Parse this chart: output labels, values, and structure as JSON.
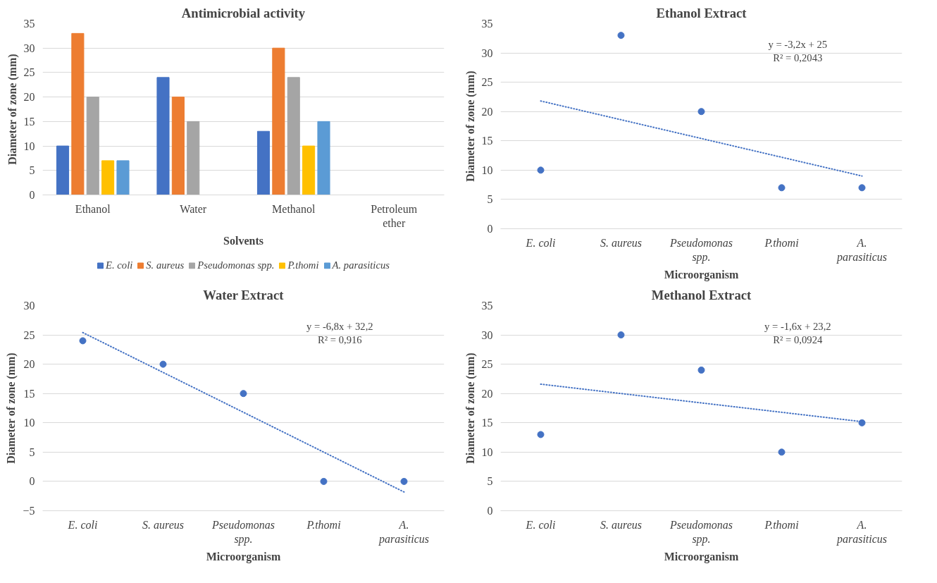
{
  "chart_data": [
    {
      "type": "bar",
      "title": "Antimicrobial activity",
      "xlabel": "Solvents",
      "ylabel": "Diameter of zone (mm)",
      "categories": [
        "Ethanol",
        "Water",
        "Methanol",
        "Petroleum ether"
      ],
      "series": [
        {
          "name": "E. coli",
          "color": "#4472c4",
          "values": [
            10,
            24,
            13,
            0
          ]
        },
        {
          "name": "S. aureus",
          "color": "#ed7d31",
          "values": [
            33,
            20,
            30,
            0
          ]
        },
        {
          "name": "Pseudomonas spp.",
          "color": "#a5a5a5",
          "values": [
            20,
            15,
            24,
            0
          ]
        },
        {
          "name": "P.thomi",
          "color": "#ffc000",
          "values": [
            7,
            0,
            10,
            0
          ]
        },
        {
          "name": "A. parasiticus",
          "color": "#5b9bd5",
          "values": [
            7,
            0,
            15,
            0
          ]
        }
      ],
      "ylim": [
        0,
        35
      ],
      "yticks": [
        0,
        5,
        10,
        15,
        20,
        25,
        30,
        35
      ],
      "grid": "y",
      "legend": "bottom"
    },
    {
      "type": "scatter",
      "title": "Ethanol Extract",
      "xlabel": "Microorganism",
      "ylabel": "Diameter of zone (mm)",
      "categories": [
        "E. coli",
        "S. aureus",
        "Pseudomonas spp.",
        "P.thomi",
        "A. parasiticus"
      ],
      "series": [
        {
          "type": "scatter",
          "color": "#4472c4",
          "values": [
            10,
            33,
            20,
            7,
            7
          ]
        },
        {
          "type": "line",
          "color": "#4472c4",
          "line_style": "dotted",
          "marker": "none",
          "values": [
            21.8,
            18.6,
            15.4,
            12.2,
            9
          ]
        }
      ],
      "annotations": [
        "y = -3,2x + 25",
        "R² = 0,2043"
      ],
      "ylim": [
        0,
        35
      ],
      "yticks": [
        0,
        5,
        10,
        15,
        20,
        25,
        30,
        35
      ],
      "grid": "y",
      "marker": "circle",
      "legend": false
    },
    {
      "type": "scatter",
      "title": "Water Extract",
      "xlabel": "Microorganism",
      "ylabel": "Diameter of zone (mm)",
      "categories": [
        "E. coli",
        "S. aureus",
        "Pseudomonas spp.",
        "P.thomi",
        "A. parasiticus"
      ],
      "series": [
        {
          "type": "scatter",
          "color": "#4472c4",
          "values": [
            24,
            20,
            15,
            0,
            0
          ]
        },
        {
          "type": "line",
          "color": "#4472c4",
          "line_style": "dotted",
          "marker": "none",
          "values": [
            25.4,
            18.6,
            11.8,
            5,
            -1.8
          ]
        }
      ],
      "annotations": [
        "y = -6,8x + 32,2",
        "R² = 0,916"
      ],
      "ylim": [
        -5,
        30
      ],
      "yticks": [
        -5,
        0,
        5,
        10,
        15,
        20,
        25,
        30
      ],
      "grid": "y",
      "marker": "circle",
      "legend": false
    },
    {
      "type": "scatter",
      "title": "Methanol Extract",
      "xlabel": "Microorganism",
      "ylabel": "Diameter of zone (mm)",
      "categories": [
        "E. coli",
        "S. aureus",
        "Pseudomonas spp.",
        "P.thomi",
        "A. parasiticus"
      ],
      "series": [
        {
          "type": "scatter",
          "color": "#4472c4",
          "values": [
            13,
            30,
            24,
            10,
            15
          ]
        },
        {
          "type": "line",
          "color": "#4472c4",
          "line_style": "dotted",
          "marker": "none",
          "values": [
            21.6,
            20,
            18.4,
            16.8,
            15.2
          ]
        }
      ],
      "annotations": [
        "y = -1,6x + 23,2",
        "R² = 0,0924"
      ],
      "ylim": [
        0,
        35
      ],
      "yticks": [
        0,
        5,
        10,
        15,
        20,
        25,
        30,
        35
      ],
      "grid": "y",
      "marker": "circle",
      "legend": false
    }
  ]
}
